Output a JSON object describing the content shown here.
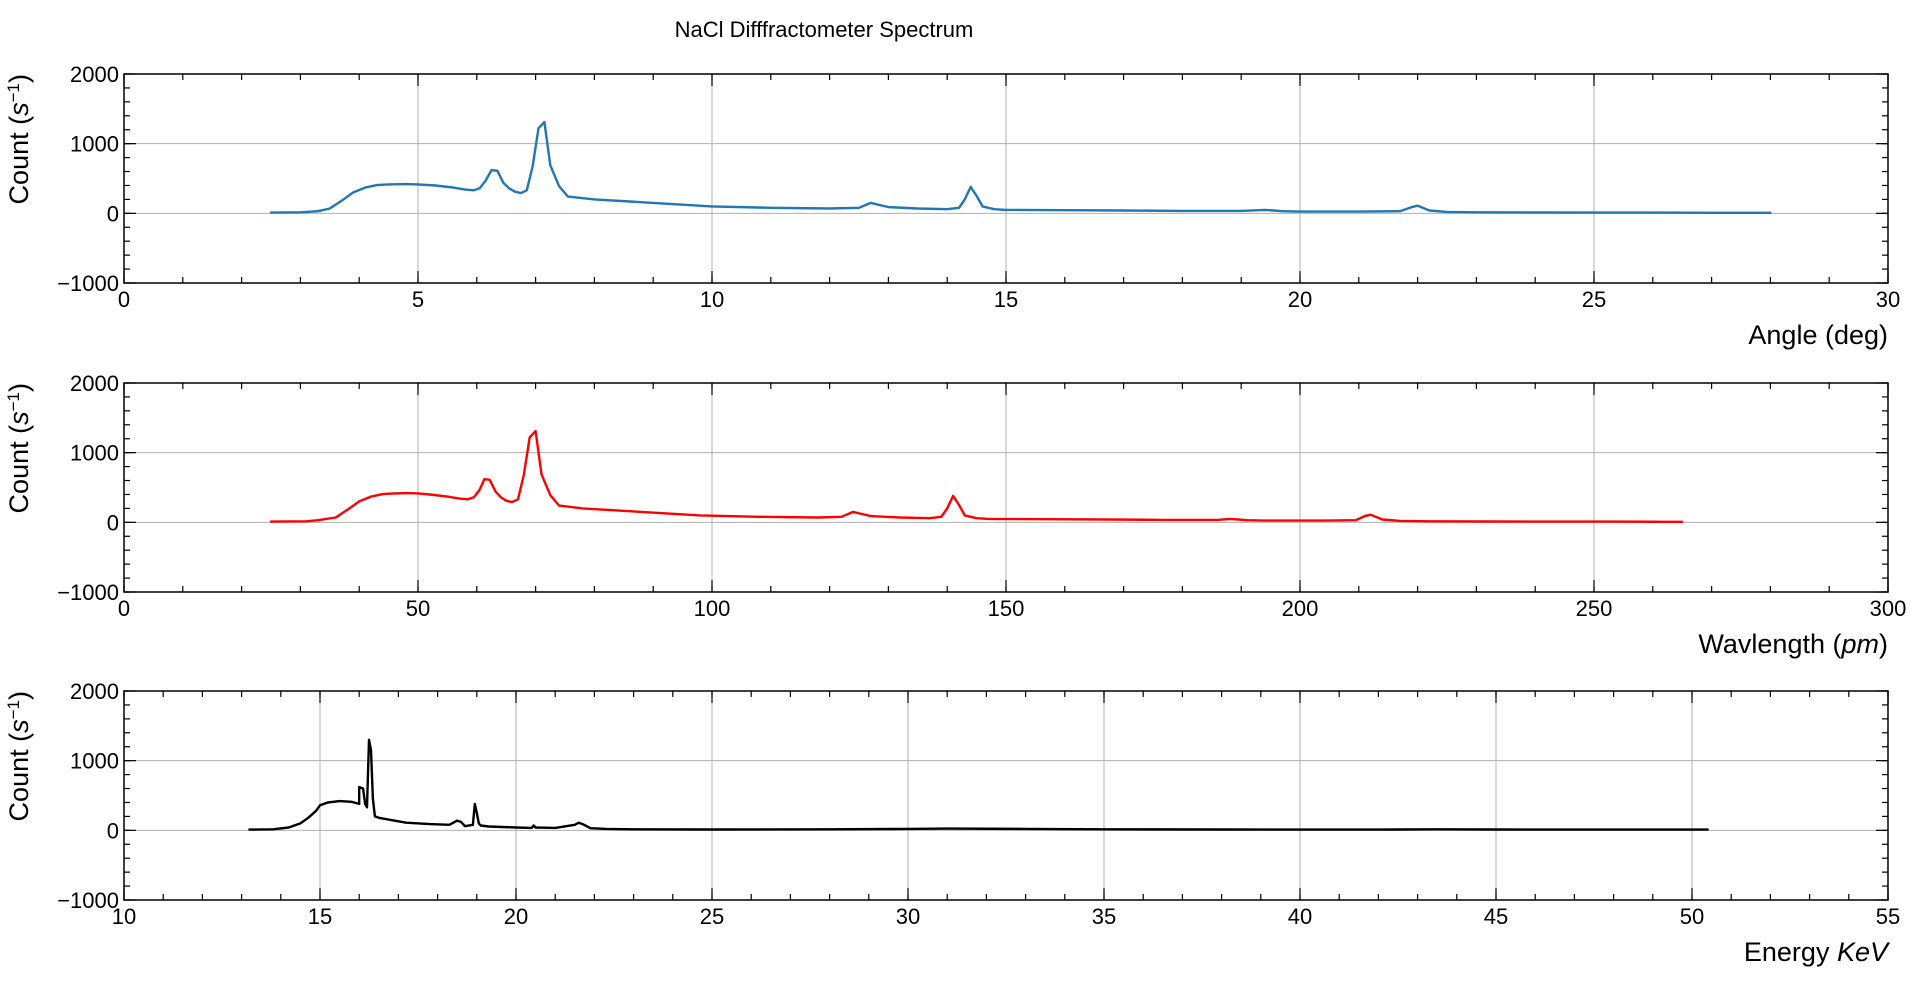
{
  "figure": {
    "title": "NaCl Difffractometer Spectrum"
  },
  "chart_data": [
    {
      "type": "line",
      "xlabel": "Angle (deg)",
      "ylabel_main": "Count (",
      "ylabel_var": "s",
      "ylabel_sup": "−1",
      "ylabel_end": ")",
      "xlim": [
        0,
        30
      ],
      "ylim": [
        -1000,
        2000
      ],
      "xticks": [
        0,
        5,
        10,
        15,
        20,
        25,
        30
      ],
      "xtick_labels": [
        "0",
        "5",
        "10",
        "15",
        "20",
        "25",
        "30"
      ],
      "yticks": [
        -1000,
        0,
        1000,
        2000
      ],
      "ytick_labels": [
        "−1000",
        "0",
        "1000",
        "2000"
      ],
      "grid": true,
      "series": [
        {
          "color": "#1f77b4",
          "x": [
            2.5,
            3.0,
            3.3,
            3.5,
            3.7,
            3.9,
            4.1,
            4.3,
            4.5,
            4.8,
            5.0,
            5.3,
            5.6,
            5.8,
            5.95,
            6.05,
            6.15,
            6.25,
            6.35,
            6.45,
            6.55,
            6.65,
            6.75,
            6.85,
            6.95,
            7.05,
            7.15,
            7.25,
            7.4,
            7.55,
            8.0,
            9.0,
            10.0,
            11.0,
            12.0,
            12.5,
            12.7,
            12.85,
            13.0,
            13.5,
            14.0,
            14.2,
            14.3,
            14.4,
            14.5,
            14.6,
            14.8,
            15.0,
            16.0,
            17.0,
            18.0,
            19.0,
            19.4,
            19.55,
            19.7,
            20.0,
            21.0,
            21.7,
            21.9,
            22.0,
            22.2,
            22.5,
            23.0,
            24.0,
            25.0,
            26.0,
            27.0,
            28.0
          ],
          "y": [
            10,
            15,
            30,
            70,
            180,
            300,
            370,
            405,
            415,
            420,
            415,
            400,
            370,
            340,
            330,
            360,
            470,
            620,
            610,
            440,
            360,
            310,
            290,
            330,
            680,
            1220,
            1310,
            690,
            390,
            240,
            200,
            150,
            100,
            80,
            70,
            80,
            150,
            120,
            90,
            70,
            60,
            80,
            200,
            380,
            250,
            100,
            60,
            50,
            45,
            40,
            35,
            35,
            50,
            40,
            30,
            25,
            25,
            30,
            90,
            110,
            40,
            20,
            15,
            12,
            10,
            10,
            8,
            8
          ]
        }
      ]
    },
    {
      "type": "line",
      "xlabel_main": "Wavlength (",
      "xlabel_var": "pm",
      "xlabel_end": ")",
      "ylabel_main": "Count (",
      "ylabel_var": "s",
      "ylabel_sup": "−1",
      "ylabel_end": ")",
      "xlim": [
        0,
        300
      ],
      "ylim": [
        -1000,
        2000
      ],
      "xticks": [
        0,
        50,
        100,
        150,
        200,
        250,
        300
      ],
      "xtick_labels": [
        "0",
        "50",
        "100",
        "150",
        "200",
        "250",
        "300"
      ],
      "yticks": [
        -1000,
        0,
        1000,
        2000
      ],
      "ytick_labels": [
        "−1000",
        "0",
        "1000",
        "2000"
      ],
      "grid": true,
      "series": [
        {
          "color": "#ff0000",
          "x": [
            25,
            31,
            33,
            36,
            38,
            40,
            42,
            44,
            46,
            48,
            50,
            52,
            55,
            57,
            58.5,
            59.5,
            60.5,
            61.3,
            62.2,
            63.2,
            64.1,
            65.0,
            66.0,
            67.0,
            68.0,
            69.0,
            70.0,
            71.0,
            72.5,
            74.0,
            78,
            88,
            98,
            108,
            118,
            122,
            124,
            125.5,
            127,
            132,
            137,
            139,
            140,
            141,
            142,
            143,
            145,
            147,
            157,
            167,
            177,
            186,
            188,
            189.5,
            191,
            194,
            204,
            209.5,
            211,
            212,
            214,
            217,
            222,
            232,
            242,
            252,
            262,
            265
          ],
          "y": [
            10,
            15,
            30,
            70,
            180,
            300,
            370,
            405,
            415,
            420,
            415,
            400,
            370,
            340,
            330,
            360,
            470,
            620,
            610,
            440,
            360,
            310,
            290,
            330,
            680,
            1220,
            1310,
            690,
            390,
            240,
            200,
            150,
            100,
            80,
            70,
            80,
            150,
            120,
            90,
            70,
            60,
            80,
            200,
            380,
            250,
            100,
            60,
            50,
            45,
            40,
            35,
            35,
            50,
            40,
            30,
            25,
            25,
            30,
            90,
            110,
            40,
            20,
            15,
            12,
            10,
            10,
            8,
            8
          ]
        }
      ]
    },
    {
      "type": "line",
      "xlabel_main": "Energy ",
      "xlabel_var": "KeV",
      "ylabel_main": "Count (",
      "ylabel_var": "s",
      "ylabel_sup": "−1",
      "ylabel_end": ")",
      "xlim": [
        10,
        55
      ],
      "ylim": [
        -1000,
        2000
      ],
      "xticks": [
        10,
        15,
        20,
        25,
        30,
        35,
        40,
        45,
        50,
        55
      ],
      "xtick_labels": [
        "10",
        "15",
        "20",
        "25",
        "30",
        "35",
        "40",
        "45",
        "50",
        "55"
      ],
      "yticks": [
        -1000,
        0,
        1000,
        2000
      ],
      "ytick_labels": [
        "−1000",
        "0",
        "1000",
        "2000"
      ],
      "grid": true,
      "series": [
        {
          "color": "#000000",
          "x": [
            13.2,
            13.8,
            14.2,
            14.5,
            14.7,
            14.9,
            15.0,
            15.2,
            15.5,
            15.8,
            16.0,
            16.0,
            16.1,
            16.15,
            16.2,
            16.25,
            16.3,
            16.35,
            16.4,
            16.5,
            16.8,
            17.2,
            17.8,
            18.3,
            18.5,
            18.6,
            18.7,
            18.9,
            18.95,
            19.0,
            19.05,
            19.1,
            19.3,
            20.0,
            20.4,
            20.45,
            20.5,
            21.0,
            21.5,
            21.6,
            21.7,
            21.9,
            22.3,
            23.0,
            25.0,
            28.0,
            30.0,
            31.0,
            33.0,
            35.0,
            38.0,
            40.0,
            42.0,
            43.5,
            45.0,
            48.0,
            50.4
          ],
          "y": [
            10,
            15,
            40,
            100,
            180,
            280,
            360,
            400,
            420,
            410,
            380,
            620,
            600,
            380,
            330,
            1300,
            1150,
            450,
            200,
            180,
            150,
            110,
            90,
            80,
            140,
            120,
            60,
            80,
            380,
            250,
            100,
            70,
            55,
            40,
            35,
            70,
            40,
            35,
            80,
            110,
            90,
            30,
            20,
            15,
            12,
            15,
            20,
            25,
            20,
            15,
            12,
            10,
            10,
            15,
            12,
            10,
            10
          ]
        }
      ]
    }
  ]
}
